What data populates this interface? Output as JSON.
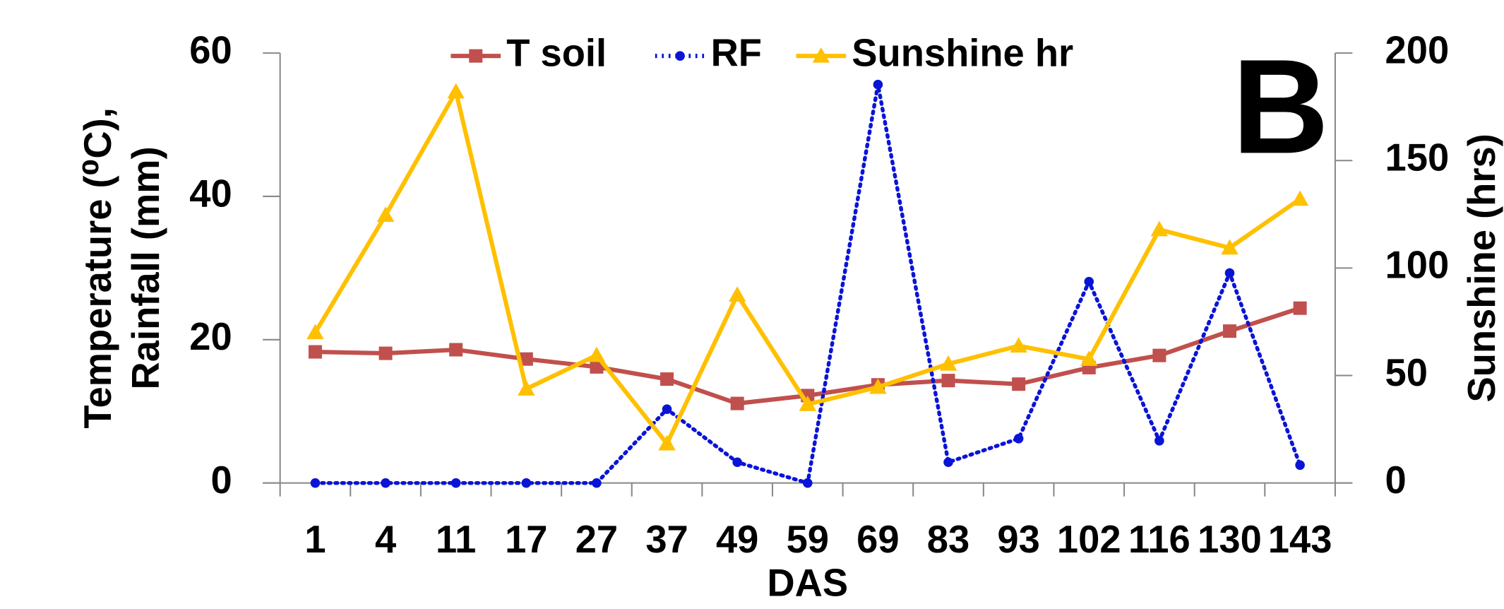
{
  "chart_data": {
    "type": "line",
    "xlabel": "DAS",
    "ylabel": [
      "Temperature (⁰C),",
      "Rainfall (mm)"
    ],
    "y2label": "Sunshine (hrs)",
    "annotation": "B",
    "categories": [
      "1",
      "4",
      "11",
      "17",
      "27",
      "37",
      "49",
      "59",
      "69",
      "83",
      "93",
      "102",
      "116",
      "130",
      "143"
    ],
    "ylim": [
      0,
      60
    ],
    "yticks": [
      0,
      20,
      40,
      60
    ],
    "y2lim": [
      0,
      200
    ],
    "y2ticks": [
      0,
      50,
      100,
      150,
      200
    ],
    "legend": "top",
    "series": [
      {
        "name": "T soil",
        "color": "#c0504d",
        "marker": "square",
        "dash": "solid",
        "values": [
          18.3,
          18.1,
          18.6,
          17.3,
          16.2,
          14.5,
          11.1,
          12.2,
          13.7,
          14.3,
          13.8,
          16.1,
          17.8,
          21.2,
          24.4
        ]
      },
      {
        "name": "RF",
        "color": "#0a14d6",
        "marker": "circle",
        "dash": "dotted",
        "values": [
          0,
          0,
          0,
          0,
          0,
          10.3,
          2.9,
          0,
          55.6,
          2.9,
          6.2,
          28.1,
          5.9,
          29.3,
          2.5
        ]
      },
      {
        "name": "Sunshine hr",
        "color": "#ffc000",
        "marker": "triangle",
        "dash": "solid",
        "axis": "y2",
        "values": [
          70,
          124.6,
          182,
          43.8,
          59.4,
          18.3,
          87.5,
          36.6,
          44.6,
          55.4,
          63.8,
          57.6,
          117.9,
          109.4,
          132.1
        ]
      }
    ]
  }
}
